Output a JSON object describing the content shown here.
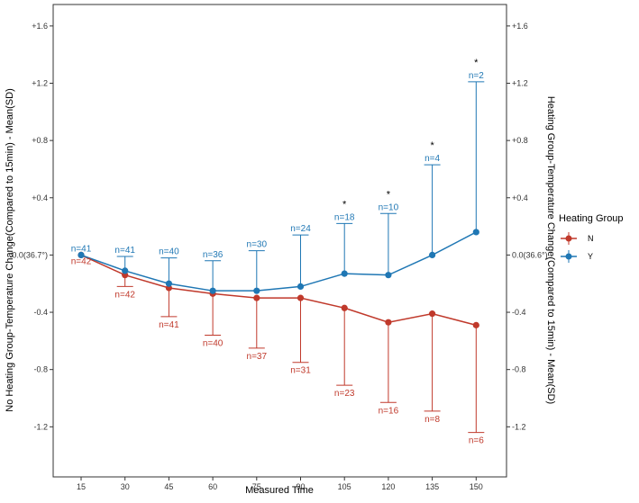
{
  "chart_data": {
    "type": "line",
    "xlabel": "Measured Time",
    "ylabel_left": "No Heating Group-Temperature Change(Compared to 15min) - Mean(SD)",
    "ylabel_right": "Heating Group-Temperature Change(Compared to 15min) - Mean(SD)",
    "x": [
      15,
      30,
      45,
      60,
      75,
      90,
      105,
      120,
      135,
      150
    ],
    "ylim": [
      -1.55,
      1.75
    ],
    "y_ticks": [
      1.6,
      1.2,
      0.8,
      0.4,
      0.0,
      -0.4,
      -0.8,
      -1.2
    ],
    "y_tick_labels_left": [
      "+1.6",
      "+1.2",
      "+0.8",
      "+0.4",
      "0.0(36.7°)",
      "-0.4",
      "-0.8",
      "-1.2"
    ],
    "y_tick_labels_right": [
      "+1.6",
      "+1.2",
      "+0.8",
      "+0.4",
      "0.0(36.6°)",
      "-0.4",
      "-0.8",
      "-1.2"
    ],
    "legend": {
      "title": "Heating Group",
      "position": "right"
    },
    "colors": {
      "N": "#c0392b",
      "Y": "#1f77b4"
    },
    "series": [
      {
        "name": "N",
        "values": [
          0.0,
          -0.14,
          -0.23,
          -0.27,
          -0.3,
          -0.3,
          -0.37,
          -0.47,
          -0.41,
          -0.49
        ],
        "sd_bound": [
          null,
          -0.22,
          -0.43,
          -0.56,
          -0.65,
          -0.75,
          -0.91,
          -1.03,
          -1.09,
          -1.24
        ],
        "n_labels": [
          "n=42",
          "n=42",
          "n=41",
          "n=40",
          "n=37",
          "n=31",
          "n=23",
          "n=16",
          "n=8",
          "n=6"
        ]
      },
      {
        "name": "Y",
        "values": [
          0.0,
          -0.11,
          -0.2,
          -0.25,
          -0.25,
          -0.22,
          -0.13,
          -0.14,
          0.0,
          0.16
        ],
        "sd_bound": [
          null,
          -0.01,
          -0.02,
          -0.04,
          0.03,
          0.14,
          0.22,
          0.29,
          0.63,
          1.21
        ],
        "n_labels": [
          "n=41",
          "n=41",
          "n=40",
          "n=36",
          "n=30",
          "n=24",
          "n=18",
          "n=10",
          "n=4",
          "n=2"
        ]
      }
    ],
    "significance_markers": [
      {
        "x": 105,
        "label": "*"
      },
      {
        "x": 120,
        "label": "*"
      },
      {
        "x": 135,
        "label": "*"
      },
      {
        "x": 150,
        "label": "*"
      }
    ]
  }
}
